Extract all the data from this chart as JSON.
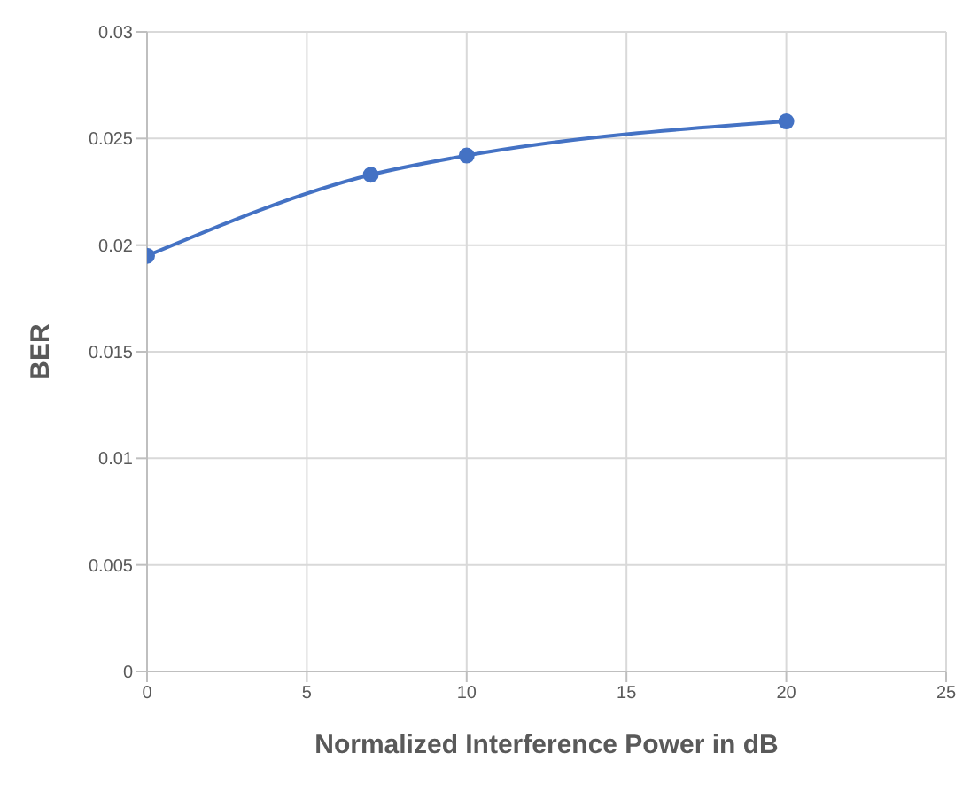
{
  "chart_data": {
    "type": "line",
    "xlabel": "Normalized Interference Power in dB",
    "ylabel": "BER",
    "x": [
      0,
      7,
      10,
      20
    ],
    "series": [
      {
        "color": "#4472c4",
        "values": [
          0.0195,
          0.0233,
          0.0242,
          0.0258
        ]
      }
    ],
    "xlim": [
      0,
      25
    ],
    "xticks": [
      0,
      5,
      10,
      15,
      20,
      25
    ],
    "ylim": [
      0,
      0.03
    ],
    "yticks": [
      0,
      0.005,
      0.01,
      0.015,
      0.02,
      0.025,
      0.03
    ],
    "grid": true,
    "marker": "circle",
    "line_style": "solid"
  }
}
